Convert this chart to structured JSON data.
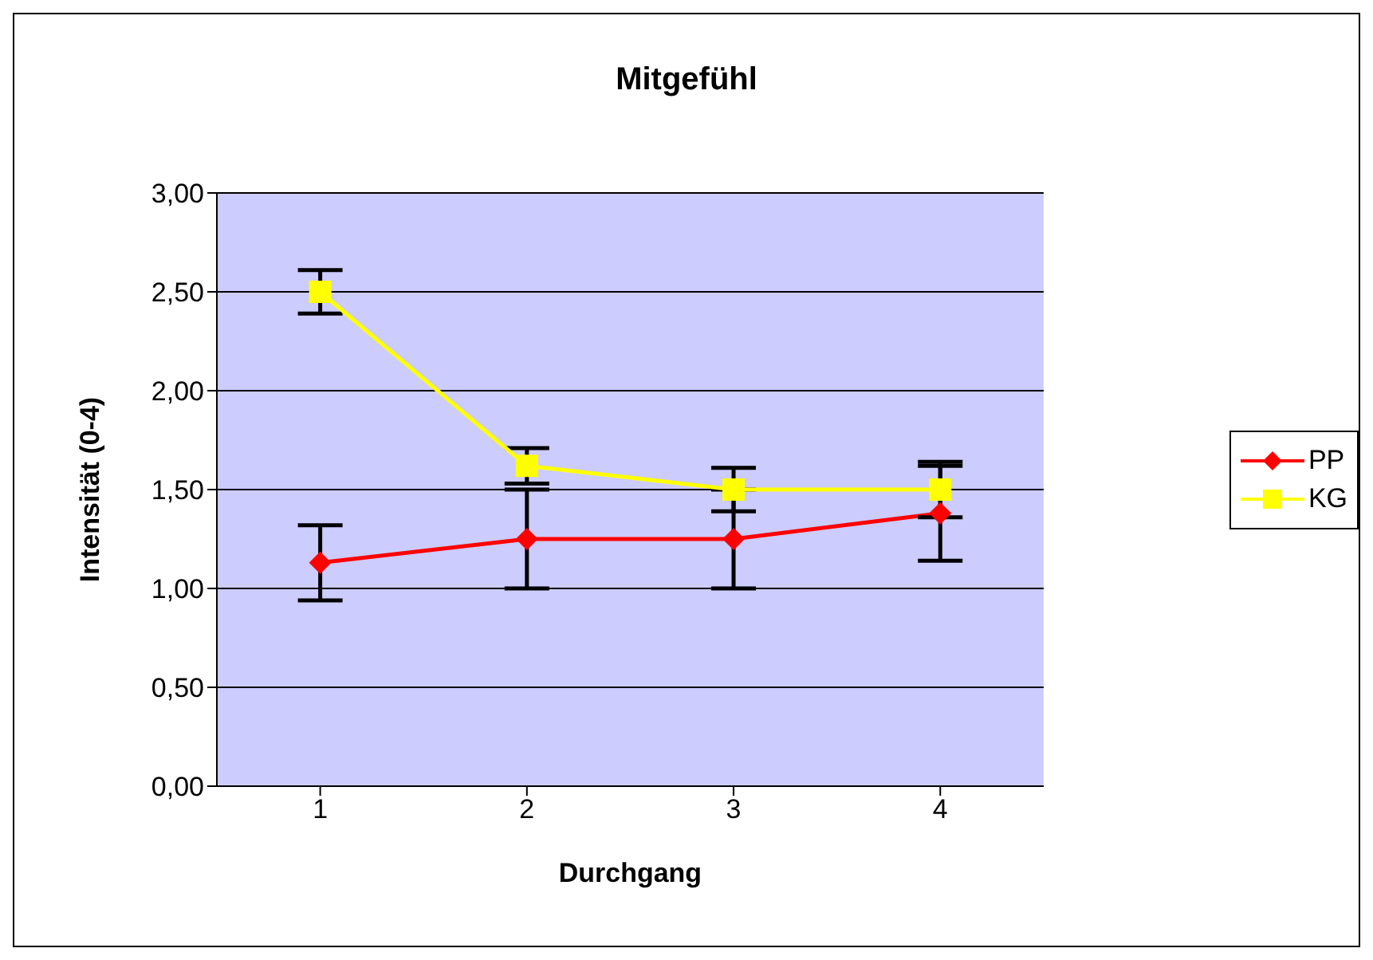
{
  "chart_data": {
    "type": "line",
    "title": "Mitgefühl",
    "xlabel": "Durchgang",
    "ylabel": "Intensität (0-4)",
    "categories": [
      "1",
      "2",
      "3",
      "4"
    ],
    "series": [
      {
        "name": "PP",
        "color": "#ff0000",
        "marker": "diamond",
        "values": [
          1.13,
          1.25,
          1.25,
          1.38
        ],
        "errors": [
          0.19,
          0.25,
          0.25,
          0.24
        ]
      },
      {
        "name": "KG",
        "color": "#ffff00",
        "marker": "square",
        "values": [
          2.5,
          1.62,
          1.5,
          1.5
        ],
        "errors": [
          0.11,
          0.09,
          0.11,
          0.14
        ]
      }
    ],
    "ylim": [
      0,
      3
    ],
    "yticks": [
      {
        "value": 0,
        "label": "0,00"
      },
      {
        "value": 0.5,
        "label": "0,50"
      },
      {
        "value": 1,
        "label": "1,00"
      },
      {
        "value": 1.5,
        "label": "1,50"
      },
      {
        "value": 2,
        "label": "2,00"
      },
      {
        "value": 2.5,
        "label": "2,50"
      },
      {
        "value": 3,
        "label": "3,00"
      }
    ],
    "grid": "y",
    "legend": "right",
    "line_style": "solid"
  }
}
